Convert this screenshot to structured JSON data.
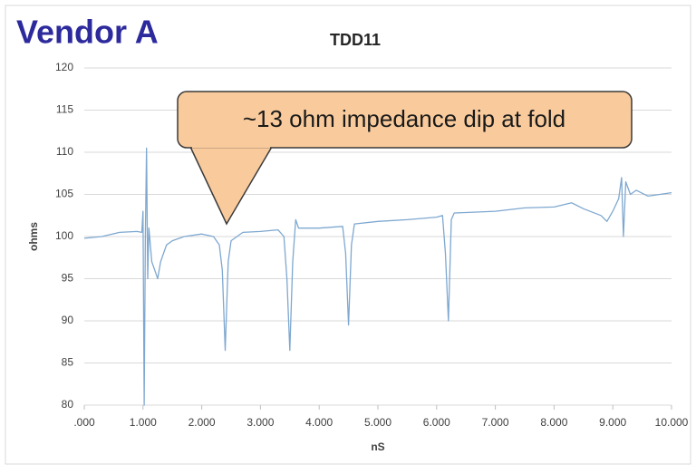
{
  "heading": "Vendor A",
  "chart_data": {
    "type": "line",
    "title": "TDD11",
    "x_label": "nS",
    "y_label": "ohms",
    "annotations": [
      "~13 ohm impedance dip at fold"
    ],
    "color": "#7ea8d0",
    "grid": true,
    "xlim": [
      0,
      10
    ],
    "ylim": [
      80,
      120
    ],
    "xticks": [
      {
        "value": 0,
        "label": ".000"
      },
      {
        "value": 1,
        "label": "1.000"
      },
      {
        "value": 2,
        "label": "2.000"
      },
      {
        "value": 3,
        "label": "3.000"
      },
      {
        "value": 4,
        "label": "4.000"
      },
      {
        "value": 5,
        "label": "5.000"
      },
      {
        "value": 6,
        "label": "6.000"
      },
      {
        "value": 7,
        "label": "7.000"
      },
      {
        "value": 8,
        "label": "8.000"
      },
      {
        "value": 9,
        "label": "9.000"
      },
      {
        "value": 10,
        "label": "10.000"
      }
    ],
    "yticks": [
      80,
      85,
      90,
      95,
      100,
      105,
      110,
      115,
      120
    ],
    "x": [
      0,
      0.3,
      0.6,
      0.9,
      0.98,
      1.0,
      1.02,
      1.04,
      1.06,
      1.08,
      1.1,
      1.15,
      1.2,
      1.25,
      1.3,
      1.4,
      1.5,
      1.7,
      2.0,
      2.2,
      2.3,
      2.35,
      2.4,
      2.45,
      2.5,
      2.7,
      3.0,
      3.3,
      3.4,
      3.45,
      3.5,
      3.55,
      3.6,
      3.65,
      4.0,
      4.4,
      4.45,
      4.5,
      4.55,
      4.6,
      5.0,
      5.5,
      6.0,
      6.1,
      6.15,
      6.2,
      6.25,
      6.3,
      7.0,
      7.5,
      8.0,
      8.3,
      8.5,
      8.8,
      8.9,
      9.0,
      9.1,
      9.15,
      9.18,
      9.22,
      9.3,
      9.4,
      9.6,
      10.0
    ],
    "values": [
      99.8,
      100.0,
      100.5,
      100.6,
      100.5,
      103,
      80,
      100,
      110.5,
      95,
      101,
      97,
      96,
      95,
      97,
      99,
      99.5,
      100,
      100.3,
      100,
      99,
      96,
      86.5,
      97,
      99.5,
      100.5,
      100.6,
      100.8,
      100,
      95,
      86.5,
      97,
      102,
      101,
      101,
      101.2,
      98,
      89.5,
      99,
      101.5,
      101.8,
      102,
      102.3,
      102.5,
      98,
      90,
      102,
      102.8,
      103,
      103.4,
      103.5,
      104,
      103.3,
      102.5,
      101.8,
      103,
      104.5,
      107,
      100,
      106.5,
      105,
      105.5,
      104.8,
      105.2
    ]
  }
}
